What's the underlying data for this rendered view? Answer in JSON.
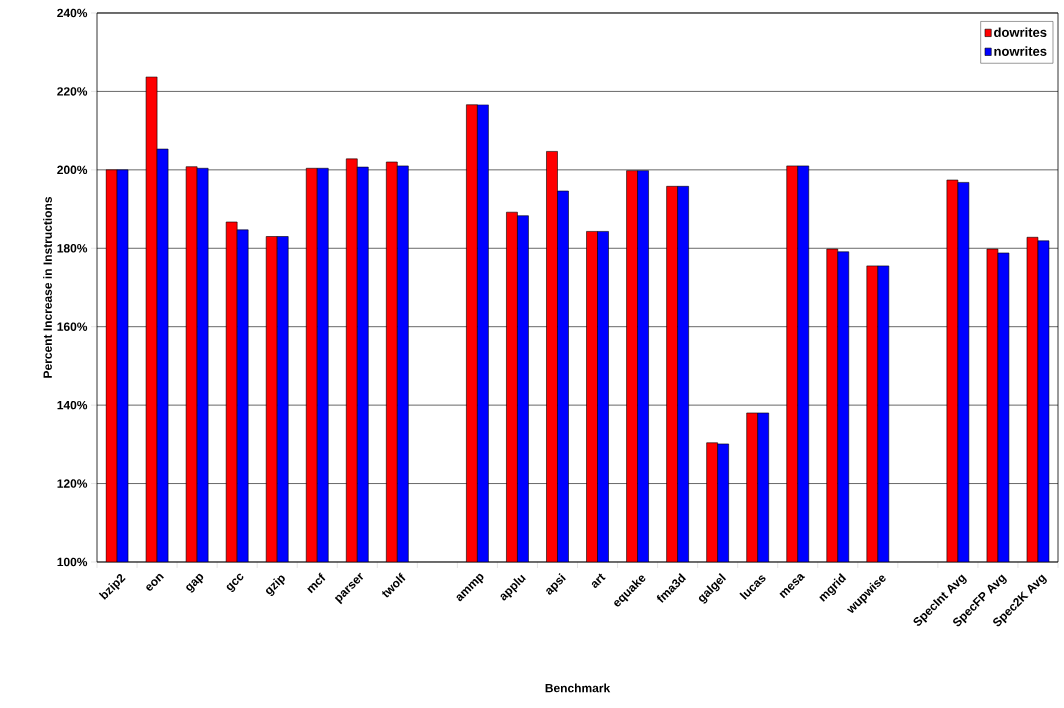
{
  "chart_data": {
    "type": "bar",
    "xlabel": "Benchmark",
    "ylabel": "Percent Increase in Instructions",
    "categories": [
      "bzip2",
      "eon",
      "gap",
      "gcc",
      "gzip",
      "mcf",
      "parser",
      "twolf",
      null,
      "ammp",
      "applu",
      "apsi",
      "art",
      "equake",
      "fma3d",
      "galgel",
      "lucas",
      "mesa",
      "mgrid",
      "wupwise",
      null,
      "SpecInt Avg",
      "SpecFP Avg",
      "Spec2K Avg"
    ],
    "series": [
      {
        "name": "dowrites",
        "color": "#ff0000",
        "values": [
          200,
          223.7,
          200.8,
          186.7,
          183,
          200.4,
          202.8,
          202,
          null,
          216.6,
          189.2,
          204.7,
          184.3,
          199.8,
          195.8,
          130.4,
          138,
          201,
          179.8,
          175.5,
          null,
          197.4,
          179.8,
          182.8
        ]
      },
      {
        "name": "nowrites",
        "color": "#0000ff",
        "values": [
          200,
          205.3,
          200.4,
          184.7,
          183,
          200.4,
          200.7,
          201,
          null,
          216.6,
          188.3,
          194.6,
          184.3,
          199.8,
          195.8,
          130.1,
          138,
          201,
          179.1,
          175.5,
          null,
          196.8,
          178.8,
          181.9
        ]
      }
    ],
    "ylim": [
      100,
      240
    ],
    "yticks": [
      {
        "value": 100,
        "label": "100%"
      },
      {
        "value": 120,
        "label": "120%"
      },
      {
        "value": 140,
        "label": "140%"
      },
      {
        "value": 160,
        "label": "160%"
      },
      {
        "value": 180,
        "label": "180%"
      },
      {
        "value": 200,
        "label": "200%"
      },
      {
        "value": 220,
        "label": "220%"
      },
      {
        "value": 240,
        "label": "240%"
      }
    ],
    "grid": "y",
    "legend": "top right"
  }
}
